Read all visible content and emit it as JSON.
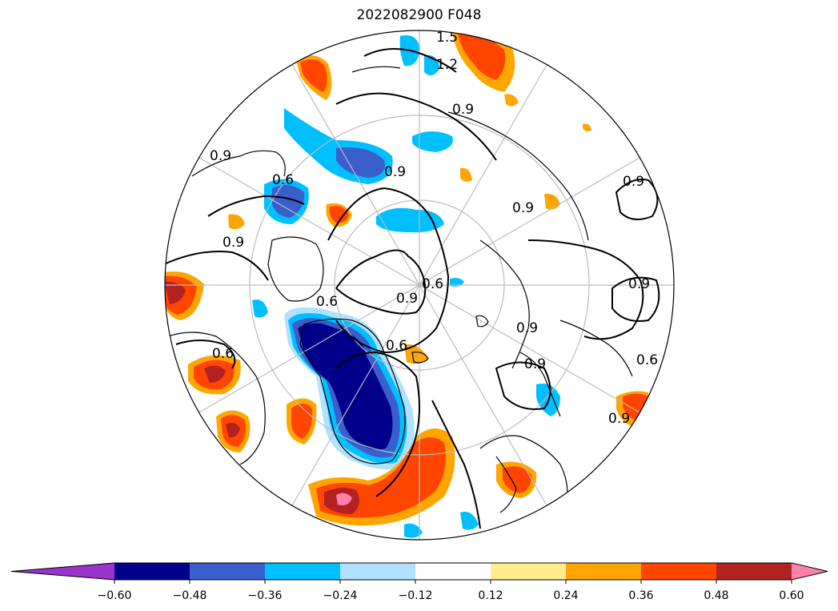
{
  "title": "2022082900 F048",
  "colorbar": {
    "levels": [
      -0.6,
      -0.48,
      -0.36,
      -0.24,
      -0.12,
      0.12,
      0.24,
      0.36,
      0.48,
      0.6
    ],
    "tick_labels": [
      "−0.60",
      "−0.48",
      "−0.36",
      "−0.24",
      "−0.12",
      "0.12",
      "0.24",
      "0.36",
      "0.48",
      "0.60"
    ],
    "colors": [
      "#9933cc",
      "#00008b",
      "#3a5fcd",
      "#00bfff",
      "#b0e2ff",
      "#ffffff",
      "#ffec8b",
      "#ffa500",
      "#ff4500",
      "#b22222",
      "#ff82ab"
    ],
    "extend": "both"
  },
  "contour_labels": [
    "1.5",
    "1.2",
    "0.9",
    "0.9",
    "0.9",
    "0.9",
    "0.9",
    "0.9",
    "0.6",
    "0.9",
    "0.6",
    "0.6",
    "0.9",
    "0.6",
    "0.9",
    "0.6",
    "0.9",
    "0.9",
    "0.6"
  ],
  "map": {
    "projection": "north-polar-stereographic",
    "coastline_color": "#000000",
    "grid_color": "#bbbbbb"
  }
}
